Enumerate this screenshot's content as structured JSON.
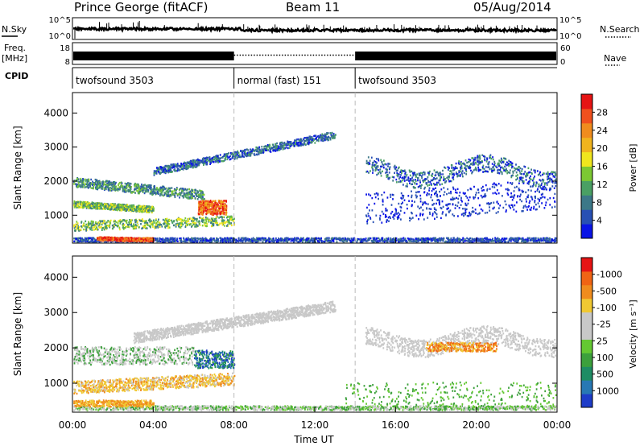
{
  "header": {
    "station": "Prince George (fitACF)",
    "beam": "Beam 11",
    "date": "05/Aug/2014"
  },
  "top_panels": {
    "nsky_label": "N.Sky",
    "nsky_ticks": [
      "10^5",
      "10^0"
    ],
    "nsearch_label": "N.Search",
    "nsearch_ticks": [
      "10^5",
      "10^0"
    ],
    "freq_label": "Freq.",
    "freq_unit": "[MHz]",
    "freq_ticks": [
      "18",
      "8"
    ],
    "nave_label": "Nave",
    "nave_ticks": [
      "60",
      "0"
    ],
    "cpid_label": "CPID",
    "cpid_segments": [
      {
        "label": "twofsound 3503",
        "start_hour": 0,
        "end_hour": 8
      },
      {
        "label": "normal (fast) 151",
        "start_hour": 8,
        "end_hour": 14
      },
      {
        "label": "twofsound 3503",
        "start_hour": 14,
        "end_hour": 24
      }
    ]
  },
  "chart_data": [
    {
      "type": "heatmap",
      "title": "",
      "xlabel": "",
      "ylabel": "Slant Range [km]",
      "xlim": [
        0,
        24
      ],
      "ylim": [
        180,
        4600
      ],
      "x_ticks": [
        "00:00",
        "04:00",
        "08:00",
        "12:00",
        "16:00",
        "20:00",
        "00:00"
      ],
      "y_ticks": [
        1000,
        2000,
        3000,
        4000
      ],
      "colorbar": {
        "label": "Power [dB]",
        "ticks": [
          "4",
          "8",
          "12",
          "16",
          "20",
          "24",
          "28"
        ],
        "colors": [
          "#0a14e6",
          "#2850b4",
          "#3c7888",
          "#4aa064",
          "#7cc832",
          "#f0e61e",
          "#f0b41e",
          "#f08c1e",
          "#f0501e",
          "#e61414"
        ]
      },
      "features": [
        {
          "hours": [
            0.0,
            4.0
          ],
          "range_km": [
            1300,
            1450
          ],
          "description_value": "mid"
        },
        {
          "hours": [
            1.2,
            4.0
          ],
          "range_km": [
            200,
            450
          ],
          "description_value": "high"
        },
        {
          "hours": [
            6.2,
            7.5
          ],
          "range_km": [
            1100,
            1500
          ],
          "description_value": "high"
        },
        {
          "hours": [
            7.5,
            13.0
          ],
          "range_km": [
            2600,
            3400
          ],
          "description_value": "low"
        },
        {
          "hours": [
            15.0,
            24.0
          ],
          "range_km": [
            1800,
            2700
          ],
          "description_value": "low"
        }
      ]
    },
    {
      "type": "heatmap",
      "title": "",
      "xlabel": "Time UT",
      "ylabel": "Slant Range [km]",
      "xlim": [
        0,
        24
      ],
      "ylim": [
        180,
        4600
      ],
      "x_ticks": [
        "00:00",
        "04:00",
        "08:00",
        "12:00",
        "16:00",
        "20:00",
        "00:00"
      ],
      "y_ticks": [
        1000,
        2000,
        3000,
        4000
      ],
      "colorbar": {
        "label": "Velocity [m s⁻¹]",
        "ticks": [
          "1000",
          "500",
          "100",
          "25",
          "-25",
          "-100",
          "-500",
          "-1000"
        ],
        "colors": [
          "#1e3cc8",
          "#2878b4",
          "#1e8c64",
          "#3ca03c",
          "#64c832",
          "#c8c8c8",
          "#c8c8c8",
          "#f0c832",
          "#f08c1e",
          "#f06414",
          "#e61414"
        ]
      },
      "features": [
        {
          "hours": [
            0.0,
            8.0
          ],
          "range_km": [
            800,
            1500
          ],
          "description_value": "negative"
        },
        {
          "hours": [
            3.0,
            13.0
          ],
          "range_km": [
            1800,
            3200
          ],
          "description_value": "near zero"
        },
        {
          "hours": [
            15.0,
            24.0
          ],
          "range_km": [
            1500,
            2700
          ],
          "description_value": "near zero"
        },
        {
          "hours": [
            18.0,
            21.0
          ],
          "range_km": [
            1900,
            2200
          ],
          "description_value": "negative"
        }
      ]
    }
  ]
}
